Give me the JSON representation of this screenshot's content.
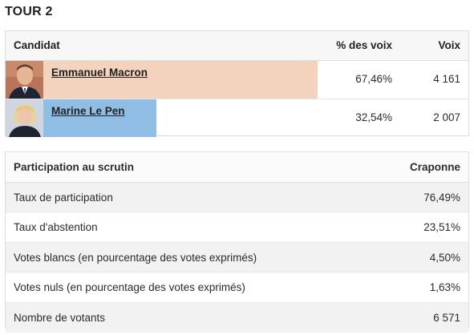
{
  "tour_title": "TOUR 2",
  "results": {
    "headers": {
      "candidate": "Candidat",
      "pct": "% des voix",
      "votes": "Voix"
    },
    "candidates": [
      {
        "name": "Emmanuel Macron",
        "pct": "67,46%",
        "pct_value": 67.46,
        "votes": "4 161",
        "bar_color": "#f3d3bd"
      },
      {
        "name": "Marine Le Pen",
        "pct": "32,54%",
        "pct_value": 32.54,
        "votes": "2 007",
        "bar_color": "#8fbde3"
      }
    ]
  },
  "participation": {
    "headers": {
      "label": "Participation au scrutin",
      "commune": "Craponne"
    },
    "rows": [
      {
        "label": "Taux de participation",
        "value": "76,49%"
      },
      {
        "label": "Taux d'abstention",
        "value": "23,51%"
      },
      {
        "label": "Votes blancs (en pourcentage des votes exprimés)",
        "value": "4,50%"
      },
      {
        "label": "Votes nuls (en pourcentage des votes exprimés)",
        "value": "1,63%"
      },
      {
        "label": "Nombre de votants",
        "value": "6 571"
      }
    ]
  }
}
